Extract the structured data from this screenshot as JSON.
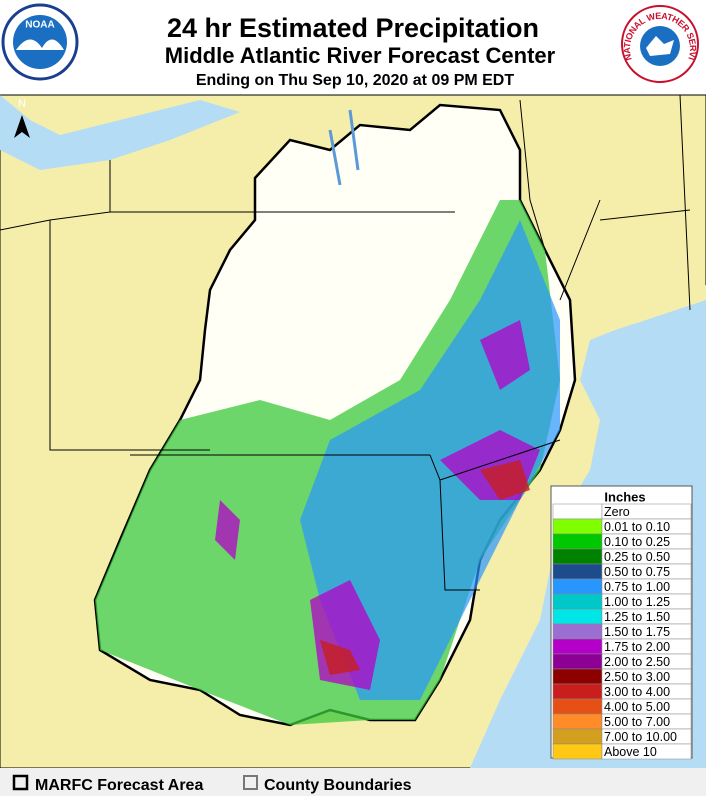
{
  "header": {
    "title": "24 hr Estimated Precipitation",
    "subtitle": "Middle Atlantic River Forecast Center",
    "date": "Ending on Thu Sep 10, 2020 at 09 PM EDT"
  },
  "logos": {
    "noaa": "NOAA",
    "nws": "NATIONAL WEATHER SERVICE"
  },
  "north_arrow": "N",
  "legend": {
    "title": "Inches",
    "items": [
      {
        "label": "Zero",
        "color": "#ffffff"
      },
      {
        "label": "0.01 to 0.10",
        "color": "#7fff00"
      },
      {
        "label": "0.10 to 0.25",
        "color": "#00c800"
      },
      {
        "label": "0.25 to 0.50",
        "color": "#008200"
      },
      {
        "label": "0.50 to 0.75",
        "color": "#1e4b8c"
      },
      {
        "label": "0.75 to 1.00",
        "color": "#2896ff"
      },
      {
        "label": "1.00 to 1.25",
        "color": "#00c8c8"
      },
      {
        "label": "1.25 to 1.50",
        "color": "#00e6e6"
      },
      {
        "label": "1.50 to 1.75",
        "color": "#9b6ed2"
      },
      {
        "label": "1.75 to 2.00",
        "color": "#b400c8"
      },
      {
        "label": "2.00 to 2.50",
        "color": "#8c0096"
      },
      {
        "label": "2.50 to 3.00",
        "color": "#8c0000"
      },
      {
        "label": "3.00 to 4.00",
        "color": "#c81e1e"
      },
      {
        "label": "4.00 to 5.00",
        "color": "#e65014"
      },
      {
        "label": "5.00 to 7.00",
        "color": "#ff8c28"
      },
      {
        "label": "7.00 to 10.00",
        "color": "#d2a01e"
      },
      {
        "label": "Above 10",
        "color": "#ffc814"
      }
    ]
  },
  "footer": {
    "items": [
      "MARFC Forecast Area",
      "County Boundaries"
    ]
  }
}
